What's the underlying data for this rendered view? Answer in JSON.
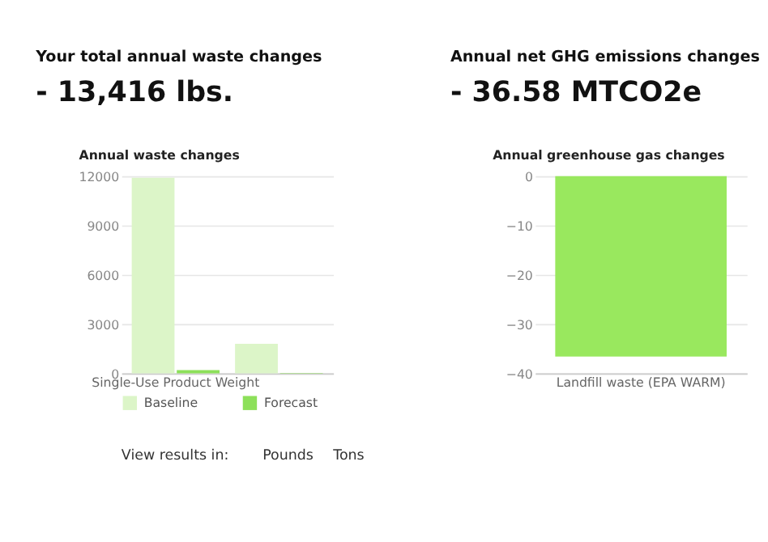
{
  "chart_data": [
    {
      "type": "bar",
      "title": "Your total annual waste changes",
      "subtitle": "- 13,416 lbs.",
      "annotations": [
        "Annual waste changes",
        "View results in:",
        "Pounds",
        "Tons"
      ],
      "categories": [
        "Single-Use Product Weight",
        null
      ],
      "series": [
        {
          "name": "Baseline",
          "color": "#dcf5c8",
          "values": [
            11900,
            1800
          ]
        },
        {
          "name": "Forecast",
          "color": "#8de05a",
          "values": [
            200,
            30
          ]
        }
      ],
      "ylim": [
        0,
        12000
      ],
      "yticks": [
        0,
        3000,
        6000,
        9000,
        12000
      ],
      "grid": "y",
      "legend": "bottom left"
    },
    {
      "type": "bar",
      "title": "Annual net GHG emissions changes",
      "subtitle": "- 36.58 MTCO2e",
      "annotations": [
        "Annual greenhouse gas changes"
      ],
      "categories": [
        "Landfill waste (EPA WARM)"
      ],
      "series": [
        {
          "color": "#99e85e",
          "values": [
            -36.58
          ]
        }
      ],
      "ylim": [
        -40,
        0
      ],
      "yticks": [
        0,
        -10,
        -20,
        -30,
        -40
      ],
      "grid": "y"
    }
  ]
}
